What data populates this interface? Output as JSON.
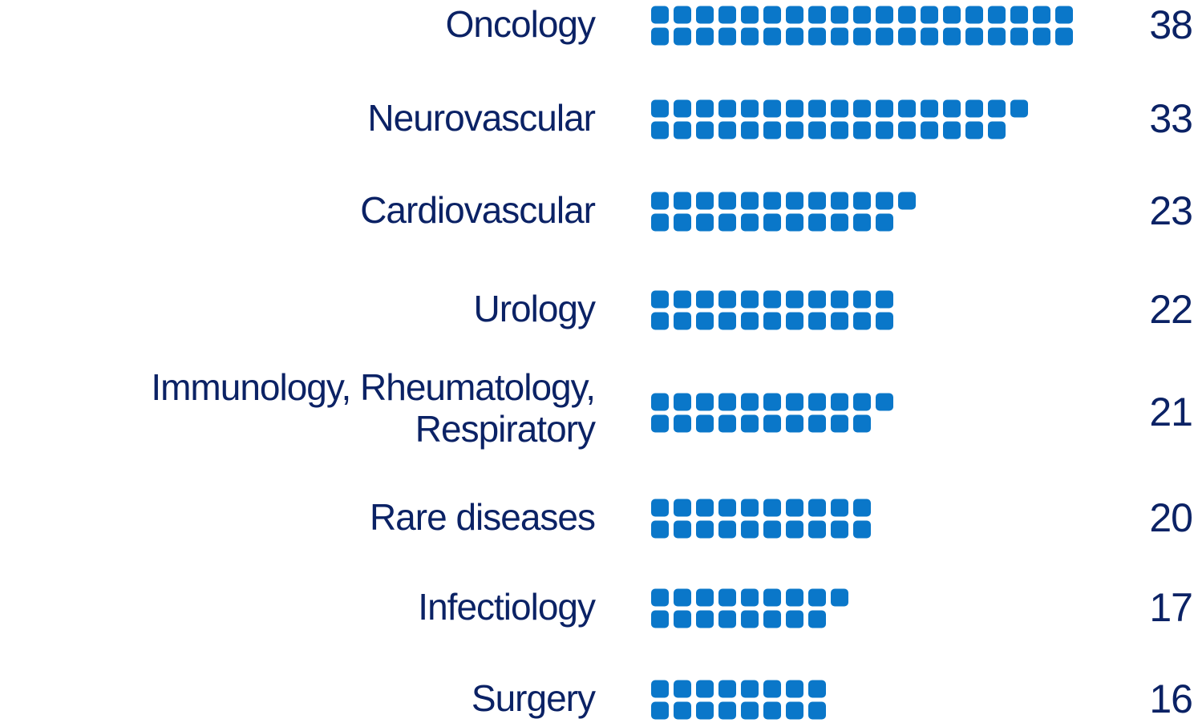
{
  "colors": {
    "text": "#0b2265",
    "square": "#0a77c9",
    "background": "#ffffff"
  },
  "chart_data": {
    "type": "bar",
    "style": "unit pictogram (one rounded square per unit, two rows per bar)",
    "categories": [
      "Oncology",
      "Neurovascular",
      "Cardiovascular",
      "Urology",
      "Immunology, Rheumatology, Respiratory",
      "Rare diseases",
      "Infectiology",
      "Surgery"
    ],
    "category_label_lines": [
      [
        "Oncology"
      ],
      [
        "Neurovascular"
      ],
      [
        "Cardiovascular"
      ],
      [
        "Urology"
      ],
      [
        "Immunology, Rheumatology,",
        "Respiratory"
      ],
      [
        "Rare diseases"
      ],
      [
        "Infectiology"
      ],
      [
        "Surgery"
      ]
    ],
    "values": [
      38,
      33,
      23,
      22,
      21,
      20,
      17,
      16
    ],
    "value_labels": [
      "38",
      "33",
      "23",
      "22",
      "21",
      "20",
      "17",
      "16"
    ],
    "title": "",
    "xlabel": "",
    "ylabel": "",
    "grid": false,
    "legend": "none"
  }
}
